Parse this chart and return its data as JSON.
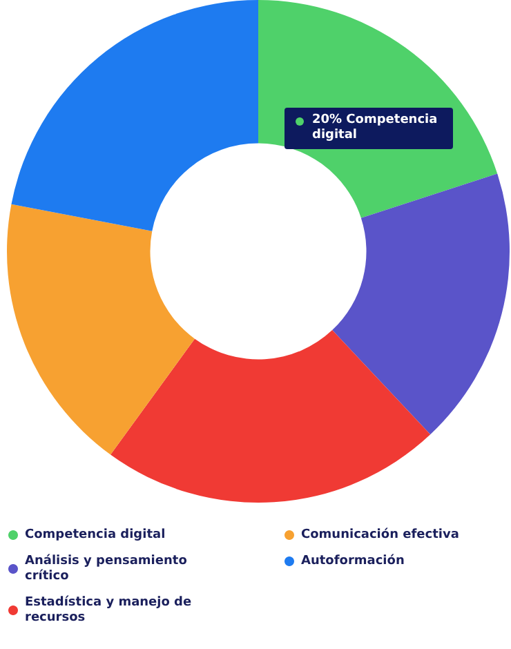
{
  "chart_data": {
    "type": "donut",
    "categories": [
      "Competencia digital",
      "Análisis y pensamiento crítico",
      "Estadística y manejo de recursos",
      "Comunicación efectiva",
      "Autoformación"
    ],
    "values": [
      20,
      18,
      22,
      18,
      22
    ],
    "colors": [
      "#4fd16a",
      "#5a54c9",
      "#f03a34",
      "#f7a131",
      "#1e7bf0"
    ],
    "legend": "bottom",
    "annotations": [
      "20% Competencia digital"
    ]
  }
}
